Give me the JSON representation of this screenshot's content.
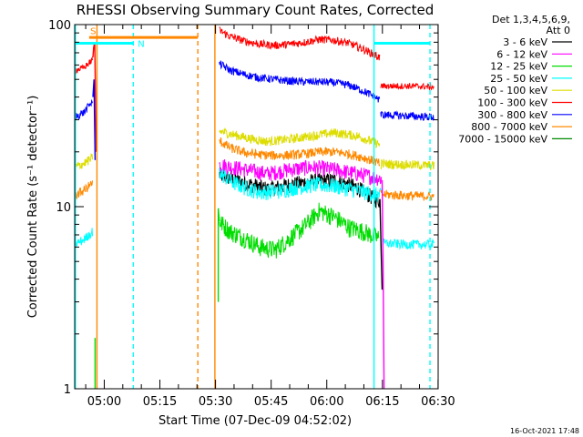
{
  "chart_data": {
    "type": "line",
    "title": "RHESSI Observing Summary Count Rates, Corrected",
    "xlabel": "Start Time (07-Dec-09 04:52:02)",
    "ylabel": "Corrected Count Rate (s⁻¹ detector⁻¹)",
    "yscale": "log",
    "ylim": [
      1,
      100
    ],
    "xlim_minutes": [
      0,
      98
    ],
    "x_ticks": [
      {
        "label": "05:00",
        "t": 7.97
      },
      {
        "label": "05:15",
        "t": 22.97
      },
      {
        "label": "05:30",
        "t": 37.97
      },
      {
        "label": "05:45",
        "t": 52.97
      },
      {
        "label": "06:00",
        "t": 67.97
      },
      {
        "label": "06:15",
        "t": 82.97
      },
      {
        "label": "06:30",
        "t": 97.97
      }
    ],
    "y_ticks": [
      {
        "label": "1",
        "v": 1
      },
      {
        "label": "10",
        "v": 10
      },
      {
        "label": "100",
        "v": 100
      }
    ],
    "legend": {
      "placement": "right",
      "header": [
        "Det 1,3,4,5,6,9,",
        "Att 0"
      ],
      "entries": [
        {
          "label": "3 - 6 keV",
          "color": "#000000"
        },
        {
          "label": "6 - 12 keV",
          "color": "#ff00ff"
        },
        {
          "label": "12 - 25 keV",
          "color": "#00dd00"
        },
        {
          "label": "25 - 50 keV",
          "color": "#00ffff"
        },
        {
          "label": "50 - 100 keV",
          "color": "#dddd00"
        },
        {
          "label": "100 - 300 keV",
          "color": "#ff0000"
        },
        {
          "label": "300 - 800 keV",
          "color": "#0000ff"
        },
        {
          "label": "800 - 7000 keV",
          "color": "#ff8800"
        },
        {
          "label": "7000 - 15000 keV",
          "color": "#008800"
        }
      ]
    },
    "series": [
      {
        "name": "3 - 6 keV",
        "color": "#000000",
        "noise": 0.1,
        "t": [
          39,
          46,
          52,
          58,
          64,
          70,
          76,
          81,
          82.2
        ],
        "v": [
          15,
          13.5,
          12.5,
          13.2,
          13.8,
          14.0,
          12.8,
          11.0,
          10.8
        ]
      },
      {
        "name": "6 - 12 keV",
        "color": "#ff00ff",
        "noise": 0.1,
        "t": [
          39,
          46,
          52,
          58,
          64,
          70,
          76,
          81,
          82.8
        ],
        "v": [
          17,
          16,
          15.2,
          16,
          16.5,
          16,
          15.2,
          14.5,
          14.2
        ]
      },
      {
        "name": "12 - 25 keV",
        "color": "#00dd00",
        "noise": 0.12,
        "t": [
          39,
          42,
          46,
          50,
          54,
          58,
          62,
          66,
          70,
          74,
          78,
          82
        ],
        "v": [
          8.3,
          7.3,
          6.7,
          6.0,
          5.8,
          6.7,
          7.8,
          9.5,
          8.8,
          7.7,
          7.3,
          6.7
        ]
      },
      {
        "name": "25 - 50 keV",
        "color": "#00ffff",
        "noise": 0.1,
        "t": [
          39,
          42,
          46,
          50,
          55,
          60,
          65,
          70,
          75,
          80,
          82.8
        ],
        "v": [
          15.5,
          13.8,
          12.7,
          12.0,
          12.2,
          12.8,
          13.2,
          13.0,
          12.4,
          11.8,
          11.5
        ]
      },
      {
        "name": "50 - 100 keV",
        "color": "#dddd00",
        "noise": 0.06,
        "t": [
          39,
          44,
          48,
          52,
          58,
          64,
          70,
          76,
          81,
          82.2
        ],
        "v": [
          26,
          24.5,
          23.5,
          22.8,
          23.5,
          24.5,
          25.5,
          24.5,
          22.5,
          22.0
        ]
      },
      {
        "name": "100 - 300 keV",
        "color": "#ff0000",
        "noise": 0.05,
        "t": [
          39,
          42,
          46,
          50,
          54,
          58,
          62,
          66,
          70,
          74,
          78,
          81,
          82.2
        ],
        "v": [
          93,
          86,
          81,
          78,
          77,
          78,
          80,
          83,
          82,
          79,
          73,
          68,
          66
        ]
      },
      {
        "name": "300 - 800 keV",
        "color": "#0000ff",
        "noise": 0.05,
        "t": [
          39,
          42,
          46,
          50,
          54,
          58,
          62,
          66,
          70,
          74,
          78,
          81,
          82.2
        ],
        "v": [
          61,
          56,
          53,
          51,
          50,
          49,
          48.5,
          48.5,
          48,
          46.5,
          43,
          40,
          38.5
        ]
      },
      {
        "name": "800 - 7000 keV",
        "color": "#ff8800",
        "noise": 0.06,
        "t": [
          39,
          42,
          46,
          50,
          54,
          58,
          62,
          66,
          70,
          74,
          78,
          81,
          82.2
        ],
        "v": [
          23,
          21,
          19.8,
          19.3,
          19.1,
          19.2,
          19.5,
          20.0,
          20.0,
          19.5,
          18.6,
          17.7,
          17.2
        ]
      },
      {
        "name": "800 - 7000 keV (decimated)",
        "color": "#ff8800",
        "noise": 0.06,
        "t": [
          82.5,
          90,
          97
        ],
        "v": [
          11.7,
          11.5,
          11.4
        ]
      },
      {
        "name": "50 - 100 keV (decimated)",
        "color": "#dddd00",
        "noise": 0.06,
        "t": [
          82.5,
          90,
          97
        ],
        "v": [
          17.2,
          17.0,
          16.8
        ]
      },
      {
        "name": "100 - 300 keV (decimated)",
        "color": "#ff0000",
        "noise": 0.04,
        "t": [
          82.5,
          90,
          97
        ],
        "v": [
          46,
          46,
          45.5
        ]
      },
      {
        "name": "300 - 800 keV (decimated)",
        "color": "#0000ff",
        "noise": 0.05,
        "t": [
          82.5,
          90,
          97
        ],
        "v": [
          32,
          31.5,
          31
        ]
      },
      {
        "name": "25 - 50 keV (decimated)",
        "color": "#00ffff",
        "noise": 0.06,
        "t": [
          83,
          90,
          97
        ],
        "v": [
          6.3,
          6.2,
          6.2
        ]
      },
      {
        "name": "100 - 300 keV (pre)",
        "color": "#ff0000",
        "noise": 0.04,
        "t": [
          0,
          2.5,
          4.8
        ],
        "v": [
          56,
          58,
          64
        ]
      },
      {
        "name": "300 - 800 keV (pre)",
        "color": "#0000ff",
        "noise": 0.05,
        "t": [
          0,
          2.5,
          4.8
        ],
        "v": [
          31,
          33,
          38
        ]
      },
      {
        "name": "800 - 7000 keV (pre)",
        "color": "#ff8800",
        "noise": 0.06,
        "t": [
          0,
          2.5,
          4.8
        ],
        "v": [
          11.5,
          12.3,
          13.5
        ]
      },
      {
        "name": "50 - 100 keV (pre)",
        "color": "#dddd00",
        "noise": 0.06,
        "t": [
          0,
          2.5,
          4.8
        ],
        "v": [
          16.5,
          17.3,
          18.5
        ]
      },
      {
        "name": "25 - 50 keV (pre)",
        "color": "#00ffff",
        "noise": 0.06,
        "t": [
          0,
          2.5,
          4.8
        ],
        "v": [
          6.2,
          6.6,
          7.3
        ]
      }
    ],
    "spikes": [
      {
        "color": "#ff0000",
        "t": [
          4.9,
          5.1,
          5.4,
          5.8
        ],
        "v": [
          66,
          75,
          80,
          20
        ]
      },
      {
        "color": "#0000ff",
        "t": [
          4.9,
          5.2,
          5.5
        ],
        "v": [
          40,
          50,
          18
        ]
      },
      {
        "color": "#ff00ff",
        "t": [
          82.9,
          83.2,
          83.4
        ],
        "v": [
          14,
          4,
          1
        ]
      },
      {
        "color": "#000000",
        "t": [
          82.3,
          82.6,
          82.9
        ],
        "v": [
          11,
          6,
          3.5
        ]
      },
      {
        "color": "#00dd00",
        "t": [
          5.5,
          5.5
        ],
        "v": [
          1,
          1.9
        ]
      },
      {
        "color": "#00dd00",
        "t": [
          38.7,
          38.7,
          39
        ],
        "v": [
          3,
          9.8,
          8.3
        ]
      }
    ],
    "markers": [
      {
        "type": "solid",
        "color": "#ff8800",
        "t": 6.0
      },
      {
        "type": "dashed",
        "color": "#00ffff",
        "t": 15.8
      },
      {
        "type": "dashed",
        "color": "#ff8800",
        "t": 33.2
      },
      {
        "type": "solid",
        "color": "#ff8800",
        "t": 37.8
      },
      {
        "type": "solid",
        "color": "#00ffff",
        "t": 80.7
      },
      {
        "type": "dashed",
        "color": "#00ffff",
        "t": 95.8
      },
      {
        "type": "solid",
        "color": "#00ffff",
        "t": 0.2
      }
    ],
    "bars": [
      {
        "label": "S",
        "color": "#ff8800",
        "t0": 3.9,
        "t1": 33.2,
        "v": 85,
        "label_t": 4.2,
        "label_v": 93
      },
      {
        "label": "N",
        "color": "#00ffff",
        "t0": 0.1,
        "t1": 15.8,
        "v": 79,
        "label_t": 17.0,
        "label_v": 79
      },
      {
        "label": "",
        "color": "#00ffff",
        "t0": 80.8,
        "t1": 95.8,
        "v": 79,
        "label_t": 0,
        "label_v": 0
      }
    ],
    "footer_timestamp": "16-Oct-2021 17:48"
  }
}
